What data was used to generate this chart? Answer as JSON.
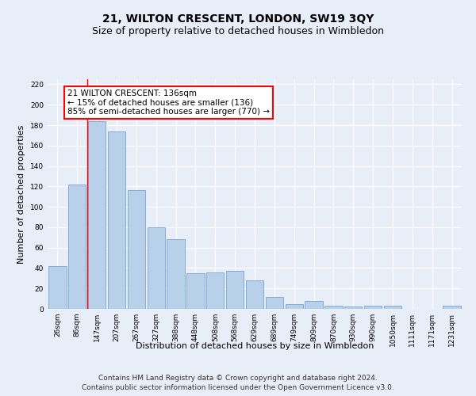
{
  "title": "21, WILTON CRESCENT, LONDON, SW19 3QY",
  "subtitle": "Size of property relative to detached houses in Wimbledon",
  "xlabel": "Distribution of detached houses by size in Wimbledon",
  "ylabel": "Number of detached properties",
  "footer_line1": "Contains HM Land Registry data © Crown copyright and database right 2024.",
  "footer_line2": "Contains public sector information licensed under the Open Government Licence v3.0.",
  "bar_labels": [
    "26sqm",
    "86sqm",
    "147sqm",
    "207sqm",
    "267sqm",
    "327sqm",
    "388sqm",
    "448sqm",
    "508sqm",
    "568sqm",
    "629sqm",
    "689sqm",
    "749sqm",
    "809sqm",
    "870sqm",
    "930sqm",
    "990sqm",
    "1050sqm",
    "1111sqm",
    "1171sqm",
    "1231sqm"
  ],
  "bar_values": [
    42,
    122,
    184,
    174,
    116,
    80,
    68,
    35,
    36,
    37,
    28,
    12,
    5,
    8,
    3,
    2,
    3,
    3,
    0,
    0,
    3
  ],
  "bar_color": "#b8d0ea",
  "bar_edge_color": "#6699cc",
  "annotation_box_text": "21 WILTON CRESCENT: 136sqm\n← 15% of detached houses are smaller (136)\n85% of semi-detached houses are larger (770) →",
  "red_line_x": 1.5,
  "ylim": [
    0,
    225
  ],
  "yticks": [
    0,
    20,
    40,
    60,
    80,
    100,
    120,
    140,
    160,
    180,
    200,
    220
  ],
  "bg_color": "#e8eef8",
  "grid_color": "#ffffff",
  "title_fontsize": 10,
  "subtitle_fontsize": 9,
  "axis_label_fontsize": 8,
  "tick_fontsize": 6.5,
  "annot_fontsize": 7.5,
  "footer_fontsize": 6.5
}
